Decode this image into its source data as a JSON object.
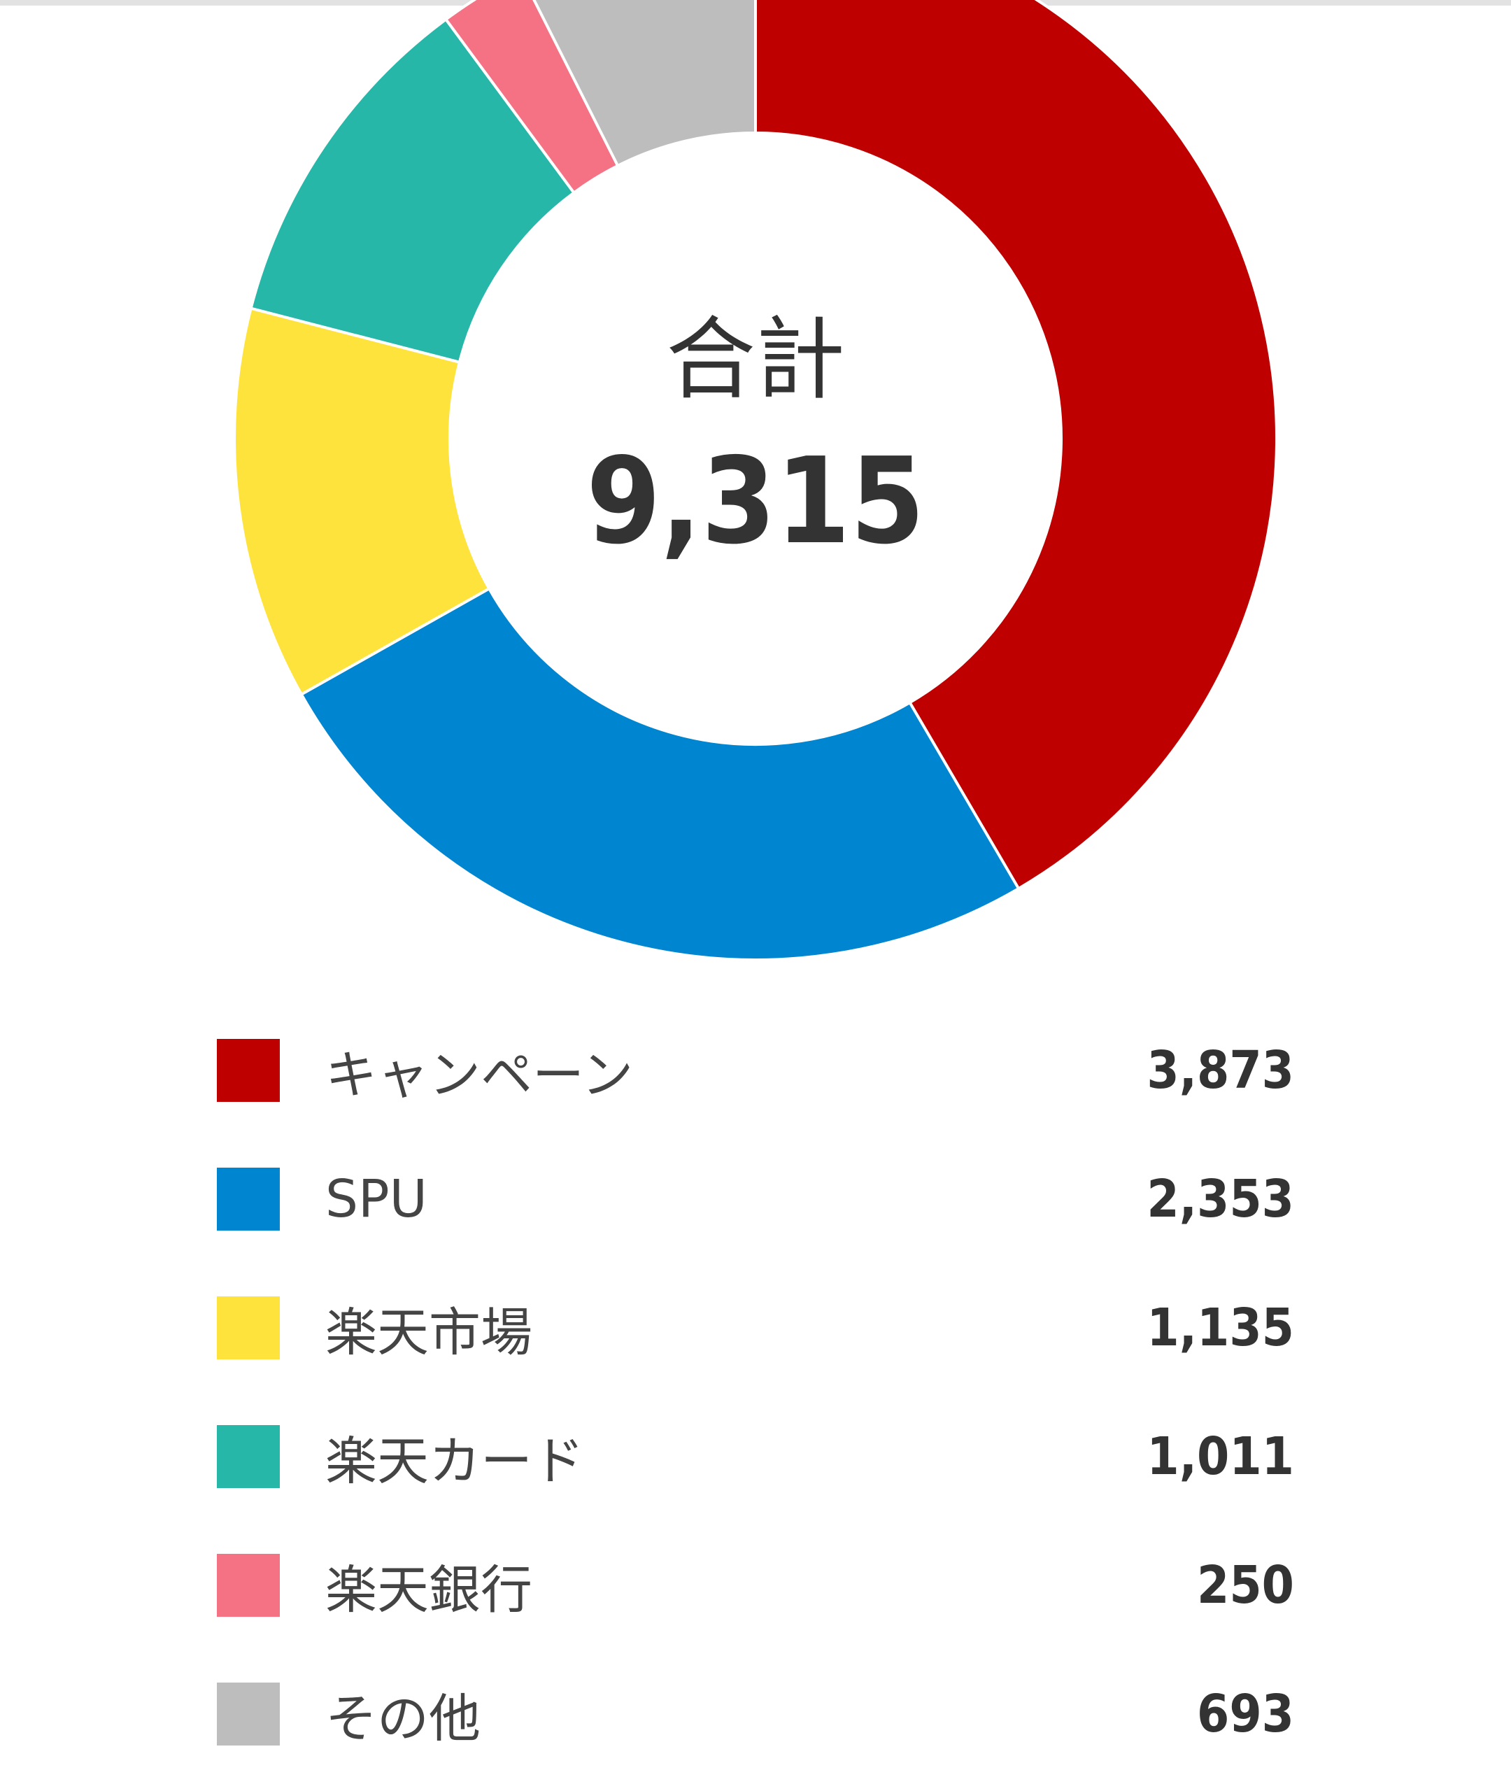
{
  "chart_data": {
    "type": "pie",
    "center_label": "合計",
    "total": "9,315",
    "categories": [
      "キャンペーン",
      "SPU",
      "楽天市場",
      "楽天カード",
      "楽天銀行",
      "その他"
    ],
    "values": [
      3873,
      2353,
      1135,
      1011,
      250,
      693
    ],
    "value_labels": [
      "3,873",
      "2,353",
      "1,135",
      "1,011",
      "250",
      "693"
    ],
    "colors": [
      "#BF0000",
      "#0086D1",
      "#FFE33D",
      "#27B7A9",
      "#F57285",
      "#BDBDBD"
    ],
    "legend_position": "bottom"
  }
}
